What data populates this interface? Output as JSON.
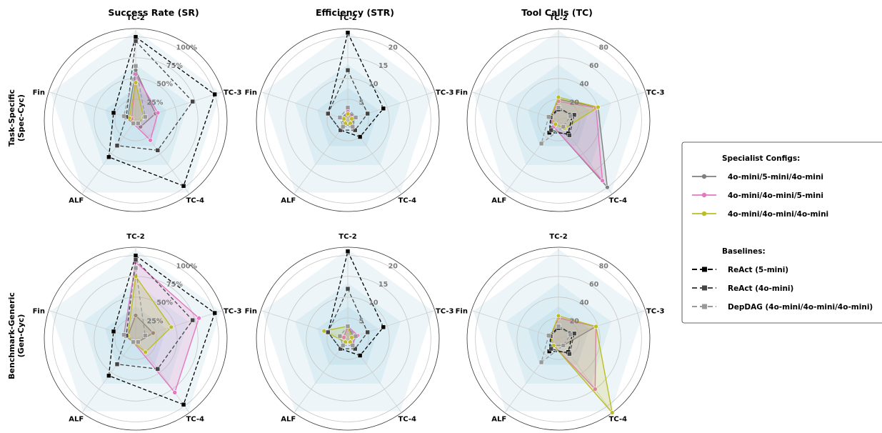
{
  "column_titles": [
    "Success Rate (SR)",
    "Efficiency (STR)",
    "Tool Calls (TC)"
  ],
  "row_labels": [
    [
      "Task-Specific",
      "(Spec-Cyc)"
    ],
    [
      "Benchmark-Generic",
      "(Gen-Cyc)"
    ]
  ],
  "legend": {
    "specialist_title": "Specialist Configs:",
    "baselines_title": "Baselines:",
    "entries": [
      {
        "label": "4o-mini/5-mini/4o-mini",
        "color": "#7f7f7f",
        "style": "solid",
        "marker": "circle"
      },
      {
        "label": "4o-mini/4o-mini/5-mini",
        "color": "#e377c2",
        "style": "solid",
        "marker": "circle"
      },
      {
        "label": "4o-mini/4o-mini/4o-mini",
        "color": "#bcbd22",
        "style": "solid",
        "marker": "circle"
      },
      {
        "label": "ReAct (5-mini)",
        "color": "#000000",
        "style": "dashed",
        "marker": "square"
      },
      {
        "label": "ReAct (4o-mini)",
        "color": "#444444",
        "style": "dashed",
        "marker": "square"
      },
      {
        "label": "DepDAG (4o-mini/4o-mini/4o-mini)",
        "color": "#999999",
        "style": "dashed",
        "marker": "square"
      }
    ]
  },
  "chart_data": [
    {
      "type": "radar",
      "row": "Task-Specific (Spec-Cyc)",
      "title": "Success Rate (SR)",
      "axes": [
        "TC-2",
        "TC-3",
        "TC-4",
        "ALF",
        "Fin"
      ],
      "rmax": 110,
      "rings": [
        25,
        50,
        75,
        100
      ],
      "ring_labels": [
        "25%",
        "50%",
        "75%",
        "100%"
      ],
      "series": [
        {
          "name": "4o-mini/5-mini/4o-mini",
          "values": [
            60,
            25,
            10,
            5,
            10
          ]
        },
        {
          "name": "4o-mini/4o-mini/5-mini",
          "values": [
            55,
            28,
            30,
            5,
            5
          ]
        },
        {
          "name": "4o-mini/4o-mini/4o-mini",
          "values": [
            45,
            10,
            5,
            5,
            8
          ]
        },
        {
          "name": "ReAct (5-mini)",
          "values": [
            100,
            100,
            98,
            55,
            28
          ]
        },
        {
          "name": "ReAct (4o-mini)",
          "values": [
            95,
            72,
            45,
            38,
            12
          ]
        },
        {
          "name": "DepDAG (4o-mini/4o-mini/4o-mini)",
          "values": [
            65,
            12,
            5,
            5,
            15
          ]
        }
      ]
    },
    {
      "type": "radar",
      "row": "Task-Specific (Spec-Cyc)",
      "title": "Efficiency (STR)",
      "axes": [
        "TC-2",
        "TC-3",
        "TC-4",
        "ALF",
        "Fin"
      ],
      "rmax": 22,
      "rings": [
        5,
        10,
        15,
        20
      ],
      "ring_labels": [
        "5",
        "10",
        "15",
        "20"
      ],
      "series": [
        {
          "name": "4o-mini/5-mini/4o-mini",
          "values": [
            2,
            2,
            1.5,
            1.5,
            1.5
          ]
        },
        {
          "name": "4o-mini/4o-mini/5-mini",
          "values": [
            2,
            1.5,
            1.5,
            1,
            1
          ]
        },
        {
          "name": "4o-mini/4o-mini/4o-mini",
          "values": [
            1.5,
            1,
            1,
            1,
            1
          ]
        },
        {
          "name": "ReAct (5-mini)",
          "values": [
            21,
            9,
            5,
            3,
            5
          ]
        },
        {
          "name": "ReAct (4o-mini)",
          "values": [
            12,
            5,
            3,
            3,
            5
          ]
        },
        {
          "name": "DepDAG (4o-mini/4o-mini/4o-mini)",
          "values": [
            3,
            2,
            2,
            2,
            2
          ]
        }
      ]
    },
    {
      "type": "radar",
      "row": "Task-Specific (Spec-Cyc)",
      "title": "Tool Calls (TC)",
      "axes": [
        "TC-2",
        "TC-3",
        "TC-4",
        "ALF",
        "Fin"
      ],
      "rmax": 88,
      "rings": [
        20,
        40,
        60,
        80
      ],
      "ring_labels": [
        "20",
        "40",
        "60",
        "80"
      ],
      "series": [
        {
          "name": "4o-mini/5-mini/4o-mini",
          "values": [
            20,
            40,
            80,
            8,
            8
          ]
        },
        {
          "name": "4o-mini/4o-mini/5-mini",
          "values": [
            18,
            38,
            72,
            8,
            8
          ]
        },
        {
          "name": "4o-mini/4o-mini/4o-mini",
          "values": [
            22,
            40,
            10,
            5,
            8
          ]
        },
        {
          "name": "ReAct (5-mini)",
          "values": [
            12,
            14,
            16,
            15,
            8
          ]
        },
        {
          "name": "ReAct (4o-mini)",
          "values": [
            10,
            16,
            18,
            12,
            8
          ]
        },
        {
          "name": "DepDAG (4o-mini/4o-mini/4o-mini)",
          "values": [
            12,
            12,
            8,
            28,
            10
          ]
        }
      ]
    },
    {
      "type": "radar",
      "row": "Benchmark-Generic (Gen-Cyc)",
      "title": "Success Rate (SR)",
      "axes": [
        "TC-2",
        "TC-3",
        "TC-4",
        "ALF",
        "Fin"
      ],
      "rmax": 110,
      "rings": [
        25,
        50,
        75,
        100
      ],
      "ring_labels": [
        "25%",
        "50%",
        "75%",
        "100%"
      ],
      "series": [
        {
          "name": "4o-mini/5-mini/4o-mini",
          "values": [
            28,
            22,
            5,
            5,
            10
          ]
        },
        {
          "name": "4o-mini/4o-mini/5-mini",
          "values": [
            92,
            80,
            80,
            5,
            15
          ]
        },
        {
          "name": "4o-mini/4o-mini/4o-mini",
          "values": [
            75,
            45,
            20,
            5,
            10
          ]
        },
        {
          "name": "ReAct (5-mini)",
          "values": [
            100,
            100,
            98,
            55,
            28
          ]
        },
        {
          "name": "ReAct (4o-mini)",
          "values": [
            95,
            72,
            45,
            38,
            12
          ]
        },
        {
          "name": "DepDAG (4o-mini/4o-mini/4o-mini)",
          "values": [
            85,
            12,
            5,
            5,
            15
          ]
        }
      ]
    },
    {
      "type": "radar",
      "row": "Benchmark-Generic (Gen-Cyc)",
      "title": "Efficiency (STR)",
      "axes": [
        "TC-2",
        "TC-3",
        "TC-4",
        "ALF",
        "Fin"
      ],
      "rmax": 22,
      "rings": [
        5,
        10,
        15,
        20
      ],
      "ring_labels": [
        "5",
        "10",
        "15",
        "20"
      ],
      "series": [
        {
          "name": "4o-mini/5-mini/4o-mini",
          "values": [
            3,
            1.5,
            1,
            1,
            1
          ]
        },
        {
          "name": "4o-mini/4o-mini/5-mini",
          "values": [
            3,
            2.5,
            1.5,
            1,
            1
          ]
        },
        {
          "name": "4o-mini/4o-mini/4o-mini",
          "values": [
            3,
            1,
            1,
            1,
            6
          ]
        },
        {
          "name": "ReAct (5-mini)",
          "values": [
            21,
            9,
            5,
            3,
            5
          ]
        },
        {
          "name": "ReAct (4o-mini)",
          "values": [
            12,
            5,
            3,
            3,
            5
          ]
        },
        {
          "name": "DepDAG (4o-mini/4o-mini/4o-mini)",
          "values": [
            3,
            2,
            2,
            2,
            2
          ]
        }
      ]
    },
    {
      "type": "radar",
      "row": "Benchmark-Generic (Gen-Cyc)",
      "title": "Tool Calls (TC)",
      "axes": [
        "TC-2",
        "TC-3",
        "TC-4",
        "ALF",
        "Fin"
      ],
      "rmax": 88,
      "rings": [
        20,
        40,
        60,
        80
      ],
      "ring_labels": [
        "20",
        "40",
        "60",
        "80"
      ],
      "series": [
        {
          "name": "4o-mini/5-mini/4o-mini",
          "values": [
            20,
            38,
            8,
            8,
            8
          ]
        },
        {
          "name": "4o-mini/4o-mini/5-mini",
          "values": [
            20,
            38,
            60,
            8,
            8
          ]
        },
        {
          "name": "4o-mini/4o-mini/4o-mini",
          "values": [
            22,
            38,
            90,
            8,
            8
          ]
        },
        {
          "name": "ReAct (5-mini)",
          "values": [
            12,
            14,
            16,
            15,
            8
          ]
        },
        {
          "name": "ReAct (4o-mini)",
          "values": [
            10,
            16,
            18,
            12,
            8
          ]
        },
        {
          "name": "DepDAG (4o-mini/4o-mini/4o-mini)",
          "values": [
            12,
            12,
            8,
            28,
            10
          ]
        }
      ]
    }
  ]
}
